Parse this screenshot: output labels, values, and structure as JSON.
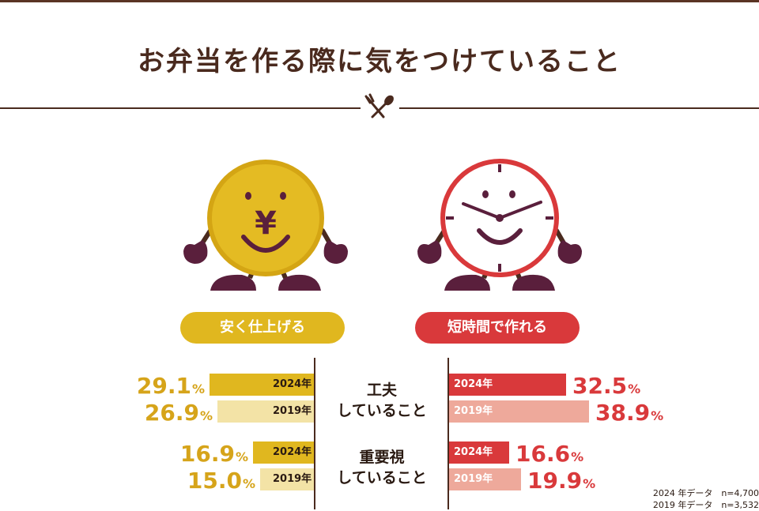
{
  "title": "お弁当を作る際に気をつけていること",
  "characters": [
    {
      "name": "yen-coin",
      "symbol": "¥"
    },
    {
      "name": "clock"
    }
  ],
  "chart_data": {
    "type": "bar",
    "categories": [
      "工夫\nしていること",
      "重要視\nしていること"
    ],
    "category_lines": [
      [
        "工夫",
        "していること"
      ],
      [
        "重要視",
        "していること"
      ]
    ],
    "groups": [
      {
        "label": "安く仕上げる",
        "color": "#e0b71f",
        "series": [
          {
            "name": "2024年",
            "values": [
              29.1,
              16.9
            ],
            "color": "#e0b71f"
          },
          {
            "name": "2019年",
            "values": [
              26.9,
              15.0
            ],
            "color": "#f3e3a6"
          }
        ]
      },
      {
        "label": "短時間で作れる",
        "color": "#d9393b",
        "series": [
          {
            "name": "2024年",
            "values": [
              32.5,
              16.6
            ],
            "color": "#d9393b"
          },
          {
            "name": "2019年",
            "values": [
              38.9,
              19.9
            ],
            "color": "#eea99b"
          }
        ]
      }
    ],
    "unit": "%"
  },
  "notes": [
    "2024 年データ　n=4,700",
    "2019 年データ　n=3,532"
  ]
}
